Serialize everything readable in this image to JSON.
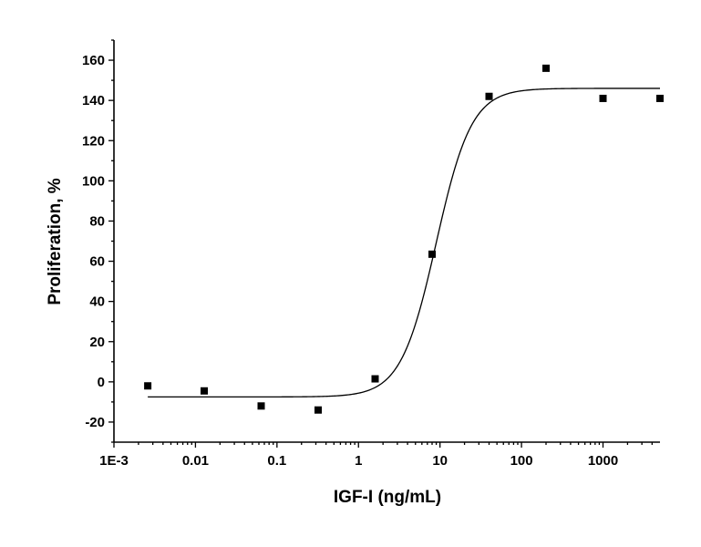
{
  "chart_data": {
    "type": "scatter",
    "xlabel": "IGF-I (ng/mL)",
    "ylabel": "Proliferation, %",
    "x_scale": "log",
    "xlim": [
      0.001,
      5000
    ],
    "ylim": [
      -30,
      170
    ],
    "x_ticks": [
      0.001,
      0.01,
      0.1,
      1,
      10,
      100,
      1000
    ],
    "x_tick_labels": [
      "1E-3",
      "0.01",
      "0.1",
      "1",
      "10",
      "100",
      "1000"
    ],
    "y_ticks": [
      -20,
      0,
      20,
      40,
      60,
      80,
      100,
      120,
      140,
      160
    ],
    "y_tick_labels": [
      "-20",
      "0",
      "20",
      "40",
      "60",
      "80",
      "100",
      "120",
      "140",
      "160"
    ],
    "grid": false,
    "series": [
      {
        "marker": "square",
        "color": "#000000",
        "x": [
          0.0026,
          0.0128,
          0.064,
          0.32,
          1.6,
          8,
          40,
          200,
          1000,
          5000
        ],
        "y": [
          -2,
          -4.5,
          -12,
          -14,
          1.5,
          63.5,
          142,
          156,
          141,
          141
        ]
      }
    ],
    "fit_curve": {
      "model": "four-parameter logistic",
      "color": "#000000",
      "x_range": [
        0.0026,
        5000
      ]
    }
  }
}
